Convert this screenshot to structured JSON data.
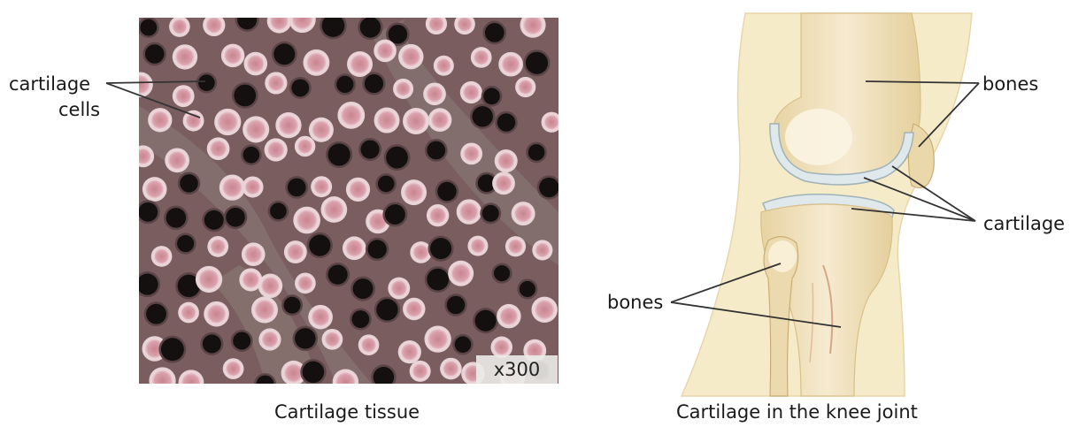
{
  "left_panel": {
    "caption": "Cartilage tissue",
    "magnification": "x300",
    "label_line1": "cartilage",
    "label_line2": "cells"
  },
  "right_panel": {
    "caption": "Cartilage in the knee joint",
    "label_bones_top": "bones",
    "label_cartilage": "cartilage",
    "label_bones_bottom": "bones"
  },
  "colors": {
    "tissue_matrix": "#7a5d5f",
    "cell_pink": "#d9a1ac",
    "bone": "#efe0b8",
    "cartilage": "#dfe8ea"
  }
}
